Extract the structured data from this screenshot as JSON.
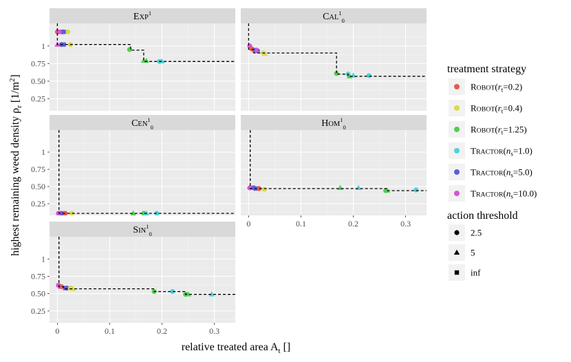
{
  "chart_data": {
    "type": "scatter",
    "xlabel": "relative treated area A",
    "xlabel_sub": "t",
    "xlabel_unit": " []",
    "ylabel": "highest remaining weed density ρ",
    "ylabel_sub": "r",
    "ylabel_unit": " [1/m",
    "ylabel_sup": "2",
    "ylabel_close": "]",
    "x_ticks": [
      0,
      0.1,
      0.2,
      0.3
    ],
    "x_tick_labels": [
      "0",
      "0.1",
      "0.2",
      "0.3"
    ],
    "xlim": [
      -0.015,
      0.34
    ],
    "y_ticks": [
      0.25,
      0.5,
      0.75,
      1
    ],
    "y_tick_labels": [
      "0.25",
      "0.50",
      "0.75",
      "1"
    ],
    "ylim": [
      0.08,
      1.32
    ],
    "legend_colour": {
      "title": "treatment strategy",
      "entries": [
        {
          "name": "ROBOT",
          "param": "r",
          "param_sub": "t",
          "value": "0.2",
          "color": "#E35D4C"
        },
        {
          "name": "ROBOT",
          "param": "r",
          "param_sub": "t",
          "value": "0.4",
          "color": "#D9D94A"
        },
        {
          "name": "ROBOT",
          "param": "r",
          "param_sub": "t",
          "value": "1.25",
          "color": "#4FD04F"
        },
        {
          "name": "TRACTOR",
          "param": "n",
          "param_sub": "s",
          "value": "1.0",
          "color": "#4ED3D9"
        },
        {
          "name": "TRACTOR",
          "param": "n",
          "param_sub": "s",
          "value": "5.0",
          "color": "#5E5EDB"
        },
        {
          "name": "TRACTOR",
          "param": "n",
          "param_sub": "s",
          "value": "10.0",
          "color": "#DB52D9"
        }
      ]
    },
    "legend_shape": {
      "title": "action threshold",
      "entries": [
        {
          "label": "2.5",
          "shape": "circle"
        },
        {
          "label": "5",
          "shape": "triangle"
        },
        {
          "label": "inf",
          "shape": "square"
        }
      ]
    },
    "panels": [
      {
        "key": "exp",
        "base": "EXP",
        "sup": "1",
        "sub": "",
        "frontier": [
          [
            0.0,
            1.32
          ],
          [
            0.0,
            1.02
          ],
          [
            0.14,
            1.02
          ],
          [
            0.14,
            0.94
          ],
          [
            0.165,
            0.94
          ],
          [
            0.165,
            0.78
          ],
          [
            0.36,
            0.78
          ]
        ],
        "points": [
          {
            "x": 0.0,
            "y": 1.2,
            "s": 0,
            "c": 5
          },
          {
            "x": 0.01,
            "y": 1.2,
            "s": 0,
            "c": 4
          },
          {
            "x": 0.02,
            "y": 1.2,
            "s": 0,
            "c": 1
          },
          {
            "x": 0.002,
            "y": 1.2,
            "s": 0,
            "c": 0
          },
          {
            "x": 0.005,
            "y": 1.2,
            "s": 2,
            "c": 5
          },
          {
            "x": 0.012,
            "y": 1.2,
            "s": 2,
            "c": 4
          },
          {
            "x": 0.0,
            "y": 1.02,
            "s": 1,
            "c": 5
          },
          {
            "x": 0.008,
            "y": 1.02,
            "s": 0,
            "c": 4
          },
          {
            "x": 0.012,
            "y": 1.02,
            "s": 2,
            "c": 4
          },
          {
            "x": 0.025,
            "y": 1.02,
            "s": 0,
            "c": 1
          },
          {
            "x": 0.138,
            "y": 0.95,
            "s": 0,
            "c": 2
          },
          {
            "x": 0.165,
            "y": 0.79,
            "s": 1,
            "c": 2
          },
          {
            "x": 0.17,
            "y": 0.79,
            "s": 1,
            "c": 2
          },
          {
            "x": 0.195,
            "y": 0.78,
            "s": 0,
            "c": 3
          },
          {
            "x": 0.2,
            "y": 0.78,
            "s": 1,
            "c": 3
          }
        ]
      },
      {
        "key": "cal",
        "base": "CAL",
        "sup": "1",
        "sub": "0",
        "frontier": [
          [
            0.0,
            1.32
          ],
          [
            0.0,
            0.95
          ],
          [
            0.01,
            0.95
          ],
          [
            0.01,
            0.9
          ],
          [
            0.168,
            0.9
          ],
          [
            0.168,
            0.6
          ],
          [
            0.19,
            0.6
          ],
          [
            0.19,
            0.57
          ],
          [
            0.36,
            0.57
          ]
        ],
        "points": [
          {
            "x": 0.002,
            "y": 1.0,
            "s": 0,
            "c": 5
          },
          {
            "x": 0.006,
            "y": 0.96,
            "s": 0,
            "c": 0
          },
          {
            "x": 0.01,
            "y": 0.94,
            "s": 0,
            "c": 0
          },
          {
            "x": 0.013,
            "y": 0.94,
            "s": 2,
            "c": 4
          },
          {
            "x": 0.017,
            "y": 0.93,
            "s": 0,
            "c": 4
          },
          {
            "x": 0.015,
            "y": 0.94,
            "s": 1,
            "c": 5
          },
          {
            "x": 0.028,
            "y": 0.9,
            "s": 0,
            "c": 1
          },
          {
            "x": 0.031,
            "y": 0.89,
            "s": 1,
            "c": 1
          },
          {
            "x": 0.168,
            "y": 0.61,
            "s": 0,
            "c": 2
          },
          {
            "x": 0.19,
            "y": 0.6,
            "s": 0,
            "c": 3
          },
          {
            "x": 0.193,
            "y": 0.57,
            "s": 1,
            "c": 2
          },
          {
            "x": 0.2,
            "y": 0.58,
            "s": 1,
            "c": 3
          },
          {
            "x": 0.23,
            "y": 0.58,
            "s": 0,
            "c": 3
          }
        ]
      },
      {
        "key": "cen",
        "base": "CEN",
        "sup": "1",
        "sub": "0",
        "frontier": [
          [
            0.003,
            1.32
          ],
          [
            0.003,
            0.11
          ],
          [
            0.36,
            0.11
          ]
        ],
        "points": [
          {
            "x": 0.002,
            "y": 0.11,
            "s": 0,
            "c": 5
          },
          {
            "x": 0.006,
            "y": 0.11,
            "s": 1,
            "c": 5
          },
          {
            "x": 0.01,
            "y": 0.11,
            "s": 2,
            "c": 4
          },
          {
            "x": 0.015,
            "y": 0.11,
            "s": 0,
            "c": 0
          },
          {
            "x": 0.028,
            "y": 0.11,
            "s": 0,
            "c": 1
          },
          {
            "x": 0.145,
            "y": 0.11,
            "s": 1,
            "c": 2
          },
          {
            "x": 0.165,
            "y": 0.11,
            "s": 0,
            "c": 2
          },
          {
            "x": 0.17,
            "y": 0.11,
            "s": 1,
            "c": 3
          },
          {
            "x": 0.19,
            "y": 0.11,
            "s": 0,
            "c": 3
          }
        ]
      },
      {
        "key": "hom",
        "base": "HOM",
        "sup": "1",
        "sub": "0",
        "frontier": [
          [
            0.003,
            1.32
          ],
          [
            0.003,
            0.47
          ],
          [
            0.265,
            0.47
          ],
          [
            0.265,
            0.44
          ],
          [
            0.36,
            0.44
          ]
        ],
        "points": [
          {
            "x": 0.002,
            "y": 0.48,
            "s": 0,
            "c": 5
          },
          {
            "x": 0.006,
            "y": 0.48,
            "s": 1,
            "c": 5
          },
          {
            "x": 0.01,
            "y": 0.48,
            "s": 0,
            "c": 4
          },
          {
            "x": 0.014,
            "y": 0.47,
            "s": 2,
            "c": 4
          },
          {
            "x": 0.02,
            "y": 0.47,
            "s": 0,
            "c": 0
          },
          {
            "x": 0.03,
            "y": 0.46,
            "s": 0,
            "c": 1
          },
          {
            "x": 0.175,
            "y": 0.48,
            "s": 1,
            "c": 2
          },
          {
            "x": 0.21,
            "y": 0.48,
            "s": 1,
            "c": 3
          },
          {
            "x": 0.262,
            "y": 0.44,
            "s": 0,
            "c": 2
          },
          {
            "x": 0.265,
            "y": 0.44,
            "s": 1,
            "c": 2
          },
          {
            "x": 0.32,
            "y": 0.45,
            "s": 0,
            "c": 3
          }
        ]
      },
      {
        "key": "sin",
        "base": "SIN",
        "sup": "1",
        "sub": "0",
        "frontier": [
          [
            0.003,
            1.32
          ],
          [
            0.003,
            0.6
          ],
          [
            0.012,
            0.6
          ],
          [
            0.012,
            0.57
          ],
          [
            0.185,
            0.57
          ],
          [
            0.185,
            0.53
          ],
          [
            0.245,
            0.53
          ],
          [
            0.245,
            0.49
          ],
          [
            0.36,
            0.49
          ]
        ],
        "points": [
          {
            "x": 0.002,
            "y": 0.62,
            "s": 0,
            "c": 5
          },
          {
            "x": 0.006,
            "y": 0.6,
            "s": 1,
            "c": 5
          },
          {
            "x": 0.008,
            "y": 0.6,
            "s": 0,
            "c": 0
          },
          {
            "x": 0.015,
            "y": 0.58,
            "s": 2,
            "c": 4
          },
          {
            "x": 0.018,
            "y": 0.58,
            "s": 0,
            "c": 4
          },
          {
            "x": 0.025,
            "y": 0.58,
            "s": 0,
            "c": 1
          },
          {
            "x": 0.03,
            "y": 0.57,
            "s": 1,
            "c": 1
          },
          {
            "x": 0.185,
            "y": 0.53,
            "s": 0,
            "c": 2
          },
          {
            "x": 0.22,
            "y": 0.53,
            "s": 0,
            "c": 3
          },
          {
            "x": 0.245,
            "y": 0.49,
            "s": 0,
            "c": 2
          },
          {
            "x": 0.25,
            "y": 0.49,
            "s": 1,
            "c": 2
          },
          {
            "x": 0.295,
            "y": 0.49,
            "s": 1,
            "c": 3
          }
        ]
      }
    ]
  }
}
